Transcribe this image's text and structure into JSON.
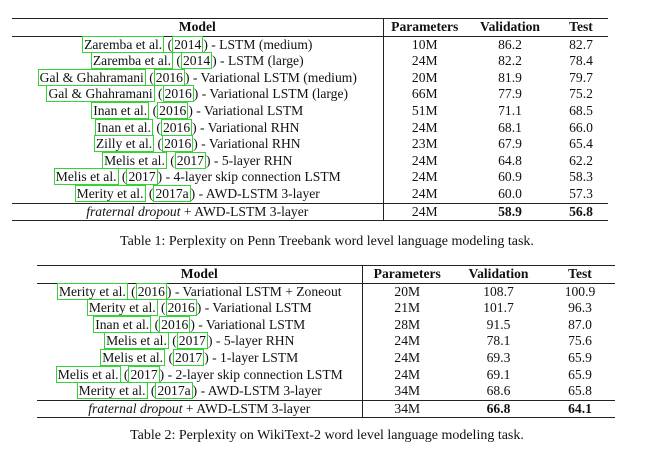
{
  "table1": {
    "headers": [
      "Model",
      "Parameters",
      "Validation",
      "Test"
    ],
    "rows": [
      {
        "cite": "Zaremba et al.",
        "year": "2014",
        "rest": " - LSTM (medium)",
        "params": "10M",
        "val": "86.2",
        "test": "82.7"
      },
      {
        "cite": "Zaremba et al.",
        "year": "2014",
        "rest": " - LSTM (large)",
        "params": "24M",
        "val": "82.2",
        "test": "78.4"
      },
      {
        "cite": "Gal & Ghahramani",
        "year": "2016",
        "rest": " - Variational LSTM (medium)",
        "params": "20M",
        "val": "81.9",
        "test": "79.7"
      },
      {
        "cite": "Gal & Ghahramani",
        "year": "2016",
        "rest": " - Variational LSTM (large)",
        "params": "66M",
        "val": "77.9",
        "test": "75.2"
      },
      {
        "cite": "Inan et al.",
        "year": "2016",
        "rest": " - Variational LSTM",
        "params": "51M",
        "val": "71.1",
        "test": "68.5"
      },
      {
        "cite": "Inan et al.",
        "year": "2016",
        "rest": " - Variational RHN",
        "params": "24M",
        "val": "68.1",
        "test": "66.0"
      },
      {
        "cite": "Zilly et al.",
        "year": "2016",
        "rest": " - Variational RHN",
        "params": "23M",
        "val": "67.9",
        "test": "65.4"
      },
      {
        "cite": "Melis et al.",
        "year": "2017",
        "rest": " - 5-layer RHN",
        "params": "24M",
        "val": "64.8",
        "test": "62.2"
      },
      {
        "cite": "Melis et al.",
        "year": "2017",
        "rest": " - 4-layer skip connection LSTM",
        "params": "24M",
        "val": "60.9",
        "test": "58.3"
      },
      {
        "cite": "Merity et al.",
        "year": "2017a",
        "rest": " - AWD-LSTM 3-layer",
        "params": "24M",
        "val": "60.0",
        "test": "57.3"
      }
    ],
    "last": {
      "emph": "fraternal dropout",
      "rest": " + AWD-LSTM 3-layer",
      "params": "24M",
      "val": "58.9",
      "test": "56.8"
    },
    "caption": "Table 1: Perplexity on Penn Treebank word level language modeling task."
  },
  "table2": {
    "headers": [
      "Model",
      "Parameters",
      "Validation",
      "Test"
    ],
    "rows": [
      {
        "cite": "Merity et al.",
        "year": "2016",
        "rest": " - Variational LSTM + Zoneout",
        "params": "20M",
        "val": "108.7",
        "test": "100.9"
      },
      {
        "cite": "Merity et al.",
        "year": "2016",
        "rest": " - Variational LSTM",
        "params": "21M",
        "val": "101.7",
        "test": "96.3"
      },
      {
        "cite": "Inan et al.",
        "year": "2016",
        "rest": " - Variational LSTM",
        "params": "28M",
        "val": "91.5",
        "test": "87.0"
      },
      {
        "cite": "Melis et al.",
        "year": "2017",
        "rest": " - 5-layer RHN",
        "params": "24M",
        "val": "78.1",
        "test": "75.6"
      },
      {
        "cite": "Melis et al.",
        "year": "2017",
        "rest": " - 1-layer LSTM",
        "params": "24M",
        "val": "69.3",
        "test": "65.9"
      },
      {
        "cite": "Melis et al.",
        "year": "2017",
        "rest": " - 2-layer skip connection LSTM",
        "params": "24M",
        "val": "69.1",
        "test": "65.9"
      },
      {
        "cite": "Merity et al.",
        "year": "2017a",
        "rest": " - AWD-LSTM 3-layer",
        "params": "34M",
        "val": "68.6",
        "test": "65.8"
      }
    ],
    "last": {
      "emph": "fraternal dropout",
      "rest": " + AWD-LSTM 3-layer",
      "params": "34M",
      "val": "66.8",
      "test": "64.1"
    },
    "caption": "Table 2: Perplexity on WikiText-2 word level language modeling task."
  }
}
